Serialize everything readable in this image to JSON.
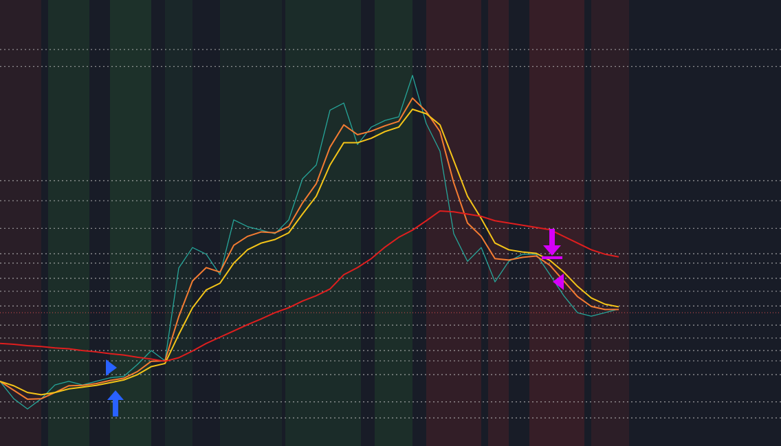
{
  "chart_data": {
    "type": "line",
    "categories": [
      null,
      null,
      null,
      null,
      null,
      null,
      null,
      null,
      null,
      null,
      null,
      null,
      null,
      null,
      null,
      null,
      null,
      null,
      null,
      null,
      null,
      null,
      null,
      null,
      null,
      null,
      null,
      null,
      null,
      null,
      null,
      null,
      null,
      null,
      null,
      null,
      null,
      null,
      null,
      null,
      null,
      null,
      null,
      null,
      null,
      null
    ],
    "ylim": [
      0,
      100
    ],
    "series": [
      {
        "color": "#26a69a",
        "values": [
          14.5,
          10.6,
          8.3,
          10.6,
          13.7,
          14.5,
          13.7,
          14.5,
          15.3,
          15.6,
          18.3,
          21.4,
          19.1,
          39.9,
          44.5,
          43.0,
          38.4,
          50.7,
          49.2,
          48.4,
          47.6,
          50.7,
          59.9,
          63.0,
          75.3,
          76.9,
          67.6,
          71.5,
          73.0,
          73.8,
          83.1,
          72.3,
          66.1,
          47.6,
          41.4,
          44.5,
          36.8,
          41.4,
          43.0,
          43.0,
          38.4,
          33.7,
          29.9,
          29.1,
          29.9,
          30.7
        ]
      },
      {
        "color": "#f57c32",
        "values": [
          14.5,
          12.5,
          10.5,
          10.6,
          12,
          13.5,
          13.6,
          14,
          14.7,
          15.2,
          16.7,
          19,
          19.1,
          29,
          37,
          40,
          39,
          45,
          47,
          48,
          47.8,
          49.2,
          54.5,
          58.8,
          67,
          72,
          69.8,
          70.6,
          71.8,
          72.8,
          78,
          75,
          70.5,
          59,
          50,
          47,
          42,
          41.7,
          42.3,
          42.6,
          40.5,
          37,
          33.5,
          31.3,
          30.6,
          30.6
        ]
      },
      {
        "color": "#f5c518",
        "values": [
          14.5,
          13.5,
          12,
          11.5,
          12,
          12.8,
          13.2,
          13.6,
          14.2,
          14.8,
          16,
          17.8,
          18.5,
          25,
          31,
          35,
          36.5,
          41,
          44,
          45.5,
          46.3,
          47.8,
          52,
          56,
          63,
          68,
          68,
          69,
          70.5,
          71.5,
          75.5,
          74.5,
          72,
          64,
          56,
          51,
          45.5,
          44,
          43.5,
          43.2,
          41.6,
          39,
          35.8,
          33.2,
          31.8,
          31.2
        ]
      },
      {
        "color": "#e01e1e",
        "values": [
          23.0,
          22.8,
          22.5,
          22.3,
          22.0,
          21.8,
          21.4,
          21.1,
          20.7,
          20.4,
          19.9,
          19.5,
          19.0,
          19.8,
          21.3,
          23.0,
          24.4,
          25.8,
          27.2,
          28.5,
          29.9,
          31.0,
          32.5,
          33.7,
          35.2,
          38.4,
          40.0,
          42.0,
          44.6,
          46.8,
          48.4,
          50.5,
          52.7,
          52.5,
          52.0,
          51.5,
          50.5,
          50.0,
          49.5,
          49.0,
          48.5,
          47.0,
          45.5,
          44.0,
          43.0,
          42.4
        ]
      }
    ],
    "levels": [
      88.9,
      85.1,
      59.5,
      55.0,
      48.8,
      43.1,
      41.0,
      37.6,
      34.7,
      31.4,
      27.1,
      24.2,
      21.4,
      19.1,
      16.0,
      9.9,
      6.3
    ],
    "level_color": "#c8c8c8",
    "price_line": 29.9,
    "price_line_color": "#e05050"
  }
}
